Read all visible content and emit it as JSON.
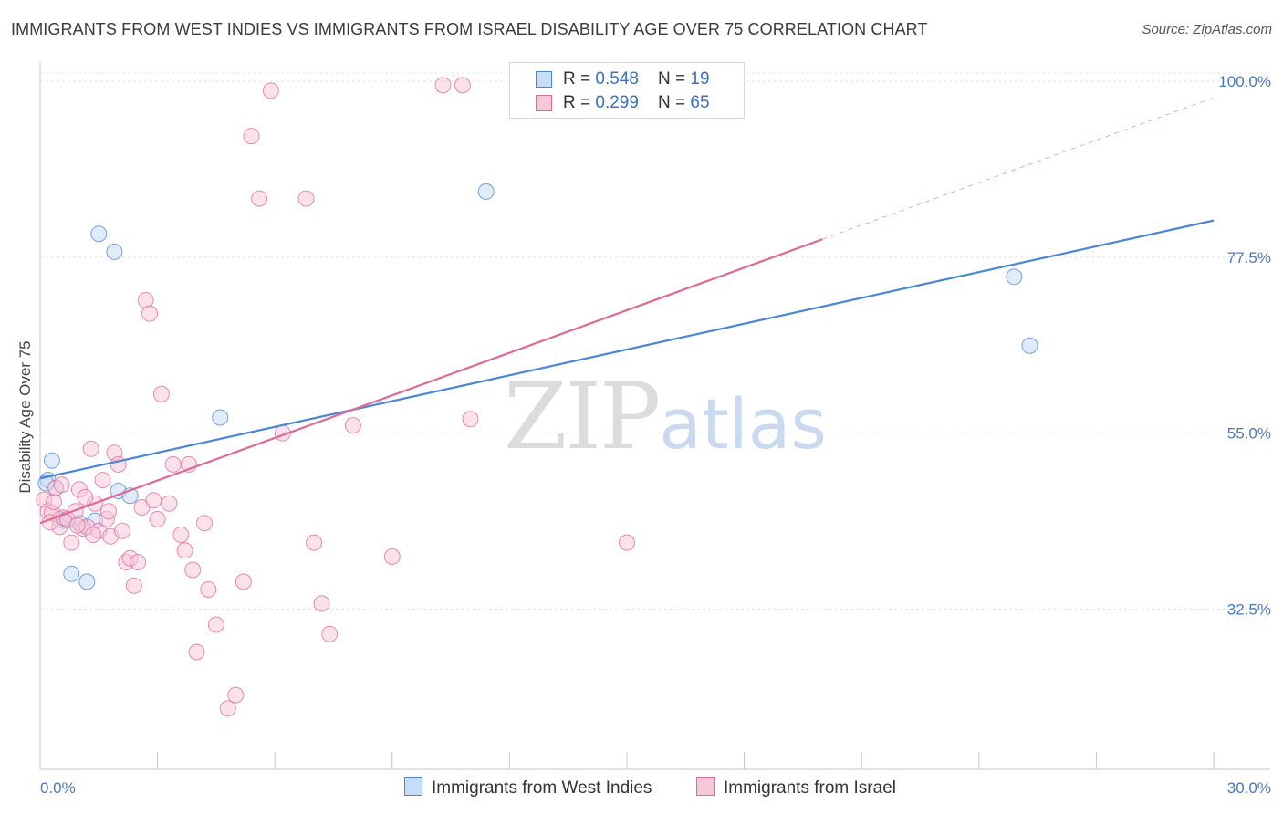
{
  "header": {
    "title": "IMMIGRANTS FROM WEST INDIES VS IMMIGRANTS FROM ISRAEL DISABILITY AGE OVER 75 CORRELATION CHART",
    "source": "Source: ZipAtlas.com"
  },
  "legend": {
    "row1": {
      "r_label": "R = ",
      "r_value": "0.548",
      "n_label": "N = ",
      "n_value": "19"
    },
    "row2": {
      "r_label": "R = ",
      "r_value": "0.299",
      "n_label": "N = ",
      "n_value": "65"
    }
  },
  "watermark": {
    "zip": "ZIP",
    "atlas": "atlas"
  },
  "colors": {
    "west_indies": "#4a86d8",
    "west_indies_fill": "#c7dcf6",
    "israel": "#e06a96",
    "israel_fill": "#f6c9d8"
  },
  "chart_data": {
    "type": "scatter",
    "ylabel": "Disability Age Over 75",
    "xlabel": "",
    "xlim": [
      0,
      30
    ],
    "ylim": [
      12,
      102
    ],
    "x_tick_labels": [
      {
        "value": 0,
        "label": "0.0%"
      },
      {
        "value": 30,
        "label": "30.0%"
      }
    ],
    "y_tick_labels": [
      {
        "value": 32.5,
        "label": "32.5%"
      },
      {
        "value": 55,
        "label": "55.0%"
      },
      {
        "value": 77.5,
        "label": "77.5%"
      },
      {
        "value": 100,
        "label": "100.0%"
      }
    ],
    "series": [
      {
        "name": "Immigrants from West Indies",
        "color": "#4a86d8",
        "points": [
          [
            0.2,
            49.0
          ],
          [
            0.3,
            51.5
          ],
          [
            0.4,
            48.0
          ],
          [
            0.5,
            44.0
          ],
          [
            0.6,
            43.8
          ],
          [
            0.8,
            37.0
          ],
          [
            1.0,
            43.5
          ],
          [
            1.2,
            36.0
          ],
          [
            1.4,
            43.8
          ],
          [
            1.5,
            80.5
          ],
          [
            1.9,
            78.2
          ],
          [
            2.0,
            47.6
          ],
          [
            2.3,
            47.0
          ],
          [
            4.6,
            57.0
          ],
          [
            11.4,
            85.9
          ],
          [
            24.9,
            75.0
          ],
          [
            25.3,
            66.2
          ],
          [
            0.15,
            48.6
          ],
          [
            0.7,
            43.9
          ]
        ],
        "trend": {
          "x0": 0,
          "y0": 49.2,
          "x1": 30,
          "y1": 82.2
        }
      },
      {
        "name": "Immigrants from Israel",
        "color": "#e06a96",
        "points": [
          [
            0.1,
            46.5
          ],
          [
            0.2,
            45.0
          ],
          [
            0.3,
            44.8
          ],
          [
            0.35,
            46.2
          ],
          [
            0.4,
            48.0
          ],
          [
            0.5,
            43.0
          ],
          [
            0.6,
            44.2
          ],
          [
            0.7,
            44.0
          ],
          [
            0.8,
            41.0
          ],
          [
            0.9,
            45.0
          ],
          [
            1.0,
            47.8
          ],
          [
            1.1,
            42.8
          ],
          [
            1.2,
            43.0
          ],
          [
            1.3,
            53.0
          ],
          [
            1.4,
            46.0
          ],
          [
            1.5,
            42.5
          ],
          [
            1.6,
            49.0
          ],
          [
            1.7,
            44.0
          ],
          [
            1.8,
            41.8
          ],
          [
            1.9,
            52.5
          ],
          [
            2.0,
            51.0
          ],
          [
            2.1,
            42.5
          ],
          [
            2.2,
            38.5
          ],
          [
            2.3,
            39.0
          ],
          [
            2.4,
            35.5
          ],
          [
            2.5,
            38.5
          ],
          [
            2.7,
            72.0
          ],
          [
            2.8,
            70.3
          ],
          [
            3.0,
            44.0
          ],
          [
            3.1,
            60.0
          ],
          [
            3.3,
            46.0
          ],
          [
            3.4,
            51.0
          ],
          [
            3.6,
            42.0
          ],
          [
            3.7,
            40.0
          ],
          [
            3.8,
            51.0
          ],
          [
            3.9,
            37.5
          ],
          [
            4.0,
            27.0
          ],
          [
            4.2,
            43.5
          ],
          [
            4.3,
            35.0
          ],
          [
            4.5,
            30.5
          ],
          [
            4.8,
            19.8
          ],
          [
            5.0,
            21.5
          ],
          [
            5.2,
            36.0
          ],
          [
            5.4,
            93.0
          ],
          [
            5.6,
            85.0
          ],
          [
            5.9,
            98.8
          ],
          [
            6.2,
            55.0
          ],
          [
            6.8,
            85.0
          ],
          [
            7.0,
            41.0
          ],
          [
            7.2,
            33.2
          ],
          [
            7.4,
            29.3
          ],
          [
            8.0,
            56.0
          ],
          [
            9.0,
            39.2
          ],
          [
            11.0,
            56.8
          ],
          [
            15.0,
            41.0
          ],
          [
            10.3,
            99.5
          ],
          [
            10.8,
            99.5
          ],
          [
            1.15,
            46.8
          ],
          [
            0.95,
            43.2
          ],
          [
            2.6,
            45.5
          ],
          [
            1.35,
            42.0
          ],
          [
            0.55,
            48.4
          ],
          [
            1.75,
            45.0
          ],
          [
            2.9,
            46.4
          ],
          [
            0.25,
            43.6
          ]
        ],
        "trend": {
          "x0": 0,
          "y0": 43.5,
          "x1": 20,
          "y1": 79.8
        },
        "trend_dashed": {
          "x0": 20,
          "y0": 79.8,
          "x1": 30,
          "y1": 97.9
        }
      }
    ]
  }
}
